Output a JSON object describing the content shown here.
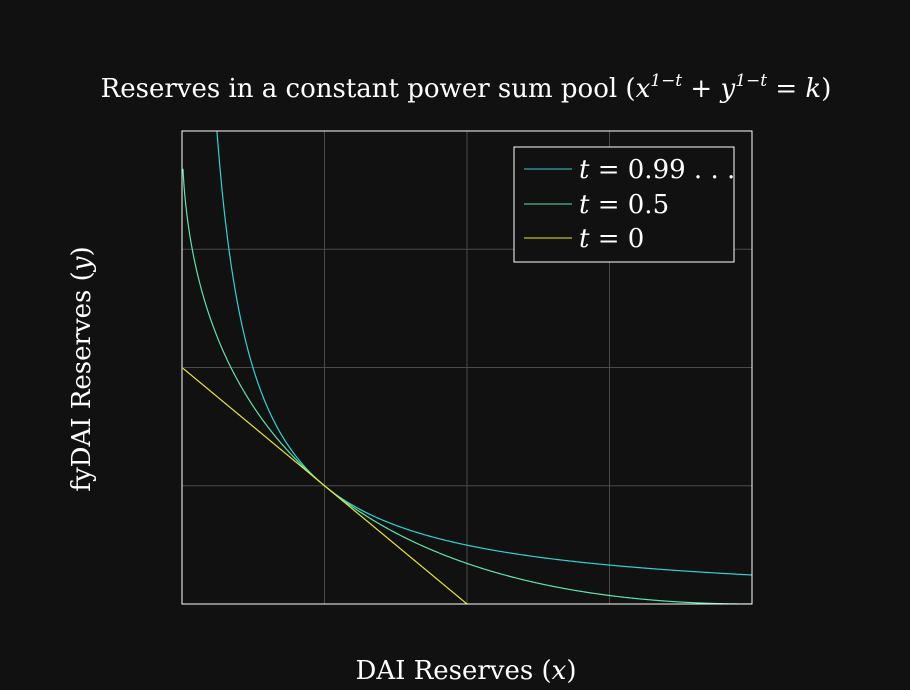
{
  "chart_data": {
    "type": "line",
    "title": "Reserves in a constant power sum pool (x¹⁻ᵗ + y¹⁻ᵗ = k)",
    "title_math": {
      "prefix": "Reserves in a constant power sum pool (",
      "x": "x",
      "exp": "1−t",
      "plus": " + ",
      "y": "y",
      "eq": " = ",
      "k": "k",
      "suffix": ")"
    },
    "xlabel": "DAI Reserves (x)",
    "xlabel_parts": {
      "text": "DAI Reserves (",
      "var": "x",
      "close": ")"
    },
    "ylabel": "fyDAI Reserves (y)",
    "ylabel_parts": {
      "text": "fyDAI Reserves (",
      "var": "y",
      "close": ")"
    },
    "xlim": [
      0,
      4
    ],
    "ylim": [
      0,
      4
    ],
    "x_ticks": [
      1,
      2,
      3
    ],
    "y_ticks": [
      1,
      2,
      3
    ],
    "tick_labels_shown": false,
    "grid": true,
    "legend_position": "top-right",
    "series": [
      {
        "name": "t = 0.99…",
        "legend_var": "t",
        "legend_rest": " = 0.99 . . .",
        "t": 0.99,
        "color": "#2fd3d3"
      },
      {
        "name": "t = 0.5",
        "legend_var": "t",
        "legend_rest": " = 0.5",
        "t": 0.5,
        "color": "#5ee3a8"
      },
      {
        "name": "t = 0",
        "legend_var": "t",
        "legend_rest": " = 0",
        "t": 0,
        "color": "#e6e630"
      }
    ],
    "curve_passes_through": [
      1,
      1
    ]
  },
  "colors": {
    "background": "#111111",
    "axes": "#ffffff",
    "grid": "#4a4a4a"
  }
}
